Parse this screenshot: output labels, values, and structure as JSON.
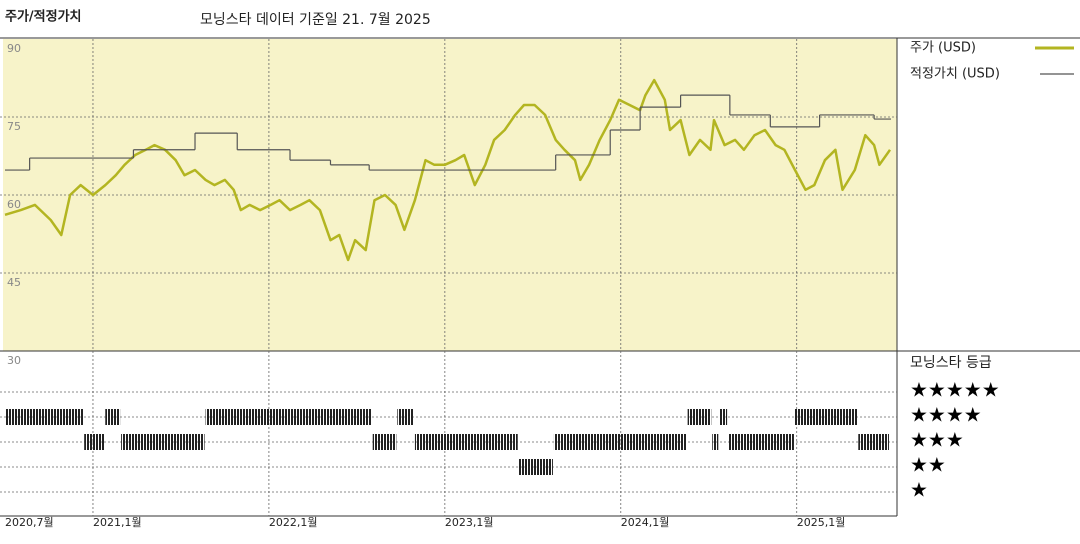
{
  "chart_data": {
    "type": "line",
    "title": "주가/적정가치",
    "subtitle": "모닝스타 데이터 기준일 21. 7월 2025",
    "xlim": [
      2020.5,
      2025.57
    ],
    "xticks": [
      {
        "value": 2020.5,
        "label": "2020,7월"
      },
      {
        "value": 2021,
        "label": "2021,1월"
      },
      {
        "value": 2022,
        "label": "2022,1월"
      },
      {
        "value": 2023,
        "label": "2023,1월"
      },
      {
        "value": 2024,
        "label": "2024,1월"
      },
      {
        "value": 2025,
        "label": "2025,1월"
      }
    ],
    "ylim": [
      30,
      90
    ],
    "yticks": [
      30,
      45,
      60,
      75,
      90
    ],
    "grid": true,
    "series": [
      {
        "name": "주가 (USD)",
        "color": "#b3b521",
        "x": [
          2020.5,
          2020.59,
          2020.67,
          2020.76,
          2020.82,
          2020.87,
          2020.93,
          2021.0,
          2021.07,
          2021.13,
          2021.18,
          2021.24,
          2021.3,
          2021.35,
          2021.41,
          2021.47,
          2021.52,
          2021.58,
          2021.64,
          2021.69,
          2021.75,
          2021.8,
          2021.84,
          2021.89,
          2021.95,
          2022.01,
          2022.06,
          2022.12,
          2022.18,
          2022.23,
          2022.29,
          2022.35,
          2022.4,
          2022.45,
          2022.49,
          2022.55,
          2022.6,
          2022.66,
          2022.72,
          2022.77,
          2022.83,
          2022.89,
          2022.94,
          2023.0,
          2023.06,
          2023.11,
          2023.17,
          2023.23,
          2023.28,
          2023.34,
          2023.4,
          2023.45,
          2023.51,
          2023.57,
          2023.63,
          2023.68,
          2023.74,
          2023.77,
          2023.82,
          2023.88,
          2023.94,
          2023.99,
          2024.05,
          2024.11,
          2024.14,
          2024.19,
          2024.25,
          2024.28,
          2024.34,
          2024.39,
          2024.45,
          2024.51,
          2024.53,
          2024.59,
          2024.65,
          2024.7,
          2024.76,
          2024.82,
          2024.88,
          2024.93,
          2024.99,
          2025.05,
          2025.1,
          2025.16,
          2025.22,
          2025.26,
          2025.33,
          2025.39,
          2025.44,
          2025.47,
          2025.53
        ],
        "values": [
          56.2,
          57.1,
          58.1,
          55.2,
          52.3,
          60.0,
          61.9,
          60.0,
          61.9,
          63.8,
          65.8,
          67.7,
          68.7,
          69.6,
          68.7,
          66.7,
          63.8,
          64.8,
          62.9,
          61.9,
          62.9,
          61.0,
          57.1,
          58.1,
          57.1,
          58.1,
          59.0,
          57.1,
          58.1,
          59.0,
          57.1,
          51.3,
          52.3,
          47.5,
          51.3,
          49.4,
          59.0,
          60.0,
          58.1,
          53.3,
          59.0,
          66.7,
          65.8,
          65.8,
          66.7,
          67.7,
          61.9,
          65.8,
          70.6,
          72.5,
          75.4,
          77.3,
          77.3,
          75.4,
          70.6,
          68.7,
          66.7,
          62.9,
          65.8,
          70.6,
          74.4,
          78.3,
          77.3,
          76.3,
          79.2,
          82.1,
          78.3,
          72.5,
          74.4,
          67.7,
          70.6,
          68.7,
          74.4,
          69.6,
          70.6,
          68.7,
          71.5,
          72.5,
          69.6,
          68.7,
          64.8,
          61.0,
          61.9,
          66.7,
          68.7,
          61.0,
          64.8,
          71.5,
          69.6,
          65.8,
          68.7
        ]
      },
      {
        "name": "적정가치 (USD)",
        "color": "#555555",
        "drawstyle": "steps-post",
        "x": [
          2020.5,
          2020.64,
          2021.23,
          2021.58,
          2021.82,
          2022.12,
          2022.35,
          2022.57,
          2023.63,
          2023.94,
          2024.11,
          2024.34,
          2024.62,
          2024.85,
          2025.13,
          2025.44
        ],
        "values": [
          64.8,
          67.1,
          68.7,
          71.9,
          68.7,
          66.7,
          65.8,
          64.8,
          67.7,
          72.5,
          76.9,
          79.2,
          75.4,
          73.1,
          75.4,
          74.6
        ]
      }
    ],
    "rating": {
      "title": "모닝스타 등급",
      "labels": [
        "★★★★★",
        "★★★★",
        "★★★",
        "★★",
        "★"
      ],
      "start": [
        2020.5,
        2020.95,
        2021.07,
        2021.16,
        2021.64,
        2022.59,
        2022.73,
        2022.83,
        2023.42,
        2023.62,
        2024.38,
        2024.52,
        2024.56,
        2024.61,
        2024.99,
        2025.35
      ],
      "end": [
        2020.95,
        2021.07,
        2021.16,
        2021.64,
        2022.59,
        2022.73,
        2022.83,
        2023.42,
        2023.62,
        2024.38,
        2024.52,
        2024.56,
        2024.61,
        2024.99,
        2025.35,
        2025.53
      ],
      "stars": [
        4,
        3,
        4,
        3,
        4,
        3,
        4,
        3,
        2,
        3,
        4,
        3,
        4,
        3,
        4,
        3
      ]
    }
  }
}
